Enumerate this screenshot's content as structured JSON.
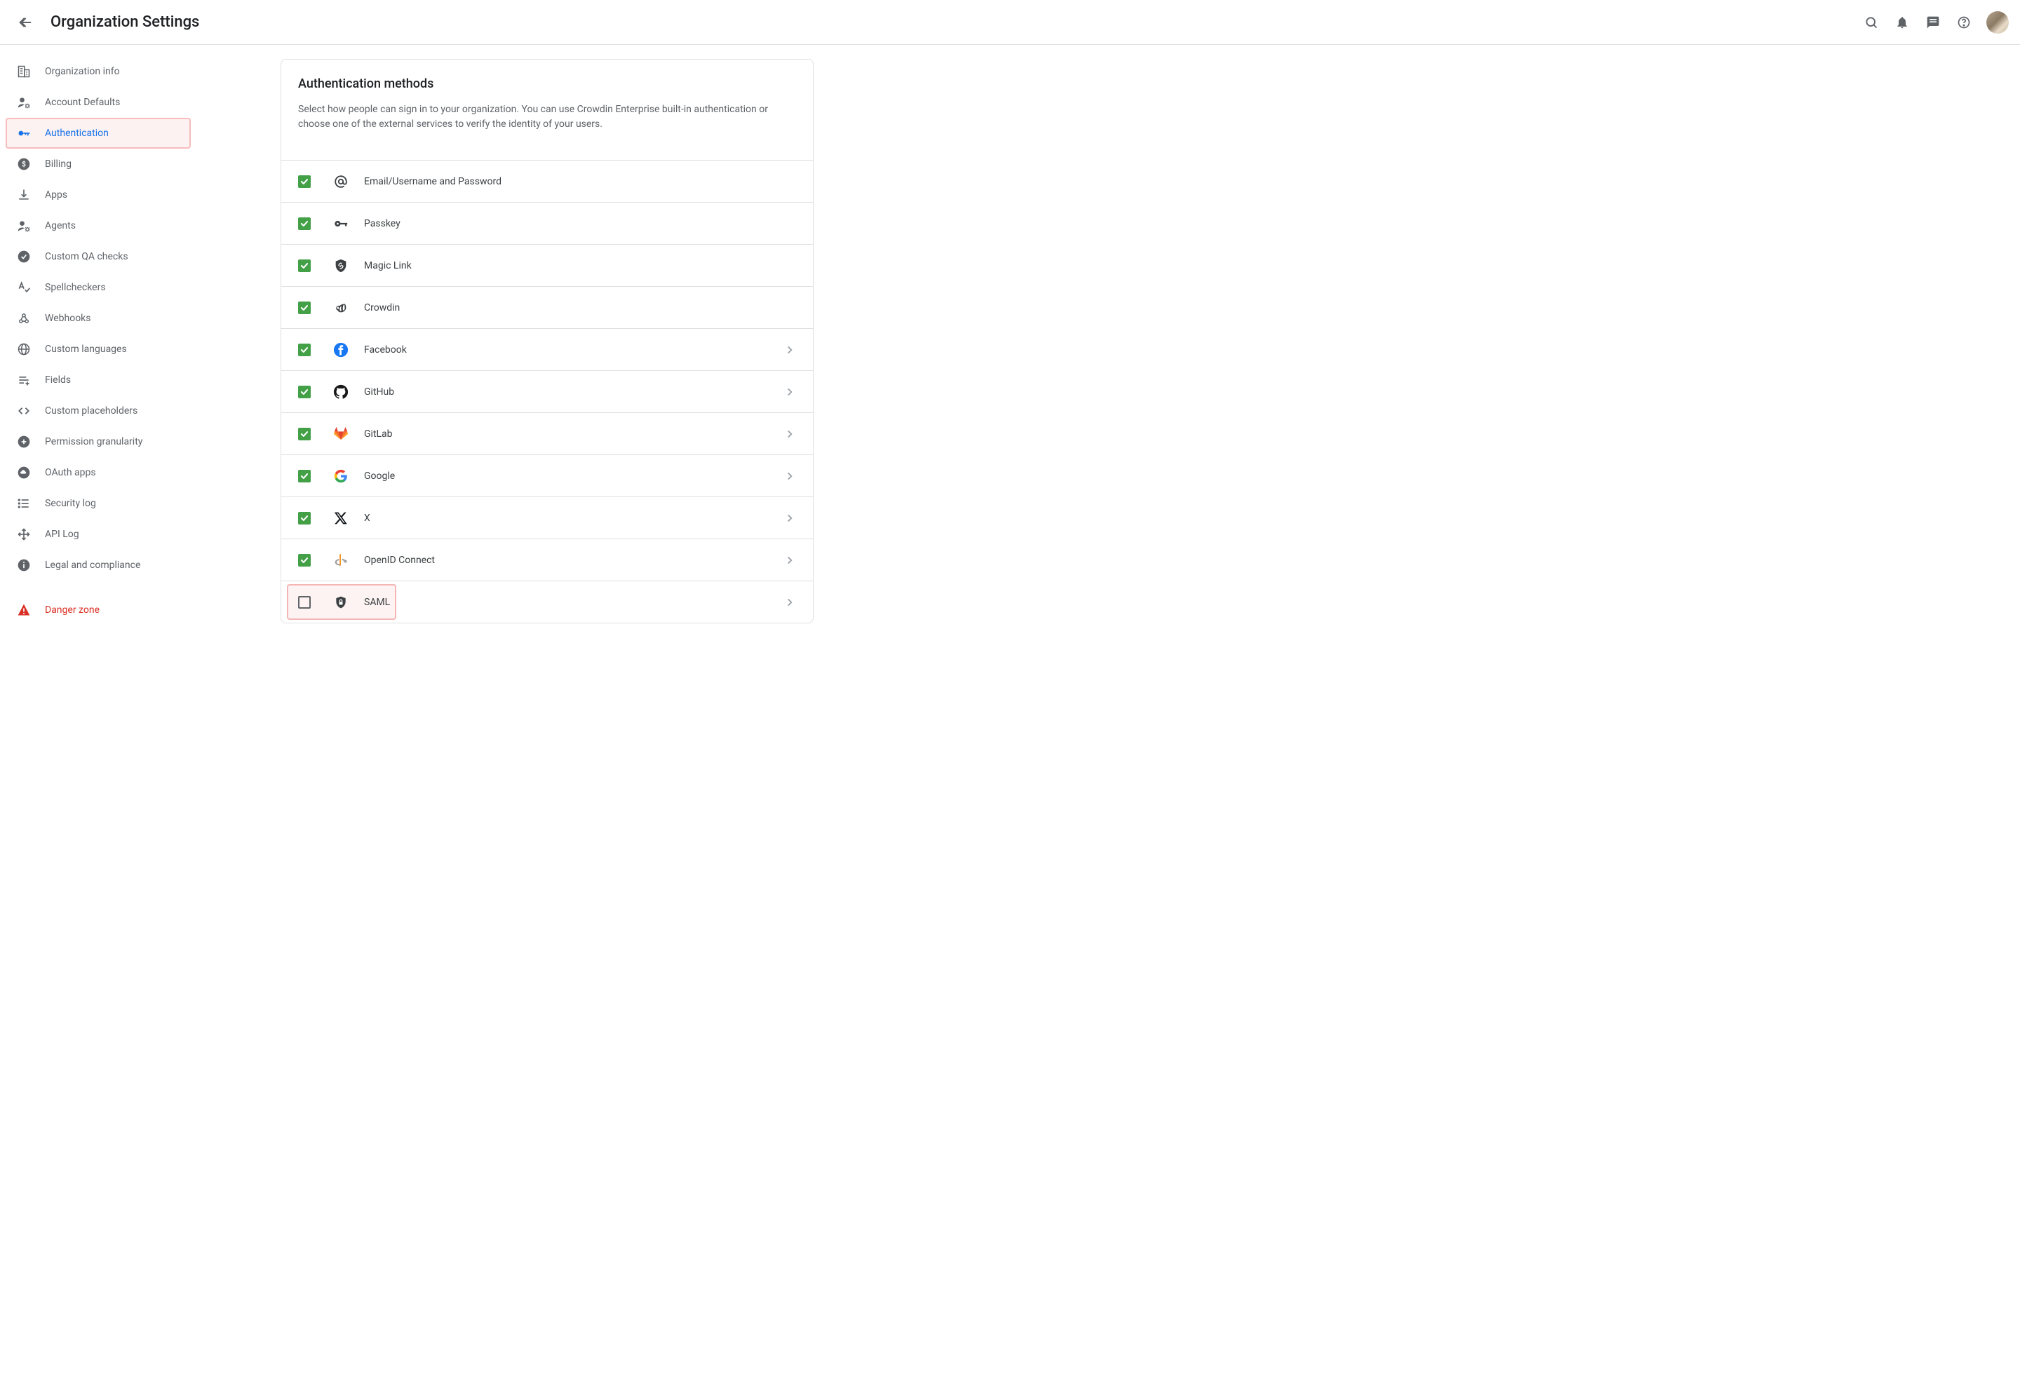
{
  "header": {
    "title": "Organization Settings"
  },
  "colors": {
    "accent": "#1a73e8",
    "check_green": "#43a047",
    "danger": "#d93025",
    "border": "#e0e0e0",
    "text_muted": "#5f6368",
    "highlight_border": "#f5b5b5",
    "highlight_bg": "#fdf3f3"
  },
  "sidebar": {
    "items": [
      {
        "icon": "building",
        "label": "Organization info"
      },
      {
        "icon": "user-gear",
        "label": "Account Defaults"
      },
      {
        "icon": "key",
        "label": "Authentication",
        "active": true,
        "highlight": true
      },
      {
        "icon": "dollar-circle",
        "label": "Billing"
      },
      {
        "icon": "download",
        "label": "Apps"
      },
      {
        "icon": "user-gear",
        "label": "Agents"
      },
      {
        "icon": "check-circle",
        "label": "Custom QA checks"
      },
      {
        "icon": "spellcheck",
        "label": "Spellcheckers"
      },
      {
        "icon": "webhook",
        "label": "Webhooks"
      },
      {
        "icon": "globe",
        "label": "Custom languages"
      },
      {
        "icon": "fields",
        "label": "Fields"
      },
      {
        "icon": "code",
        "label": "Custom placeholders"
      },
      {
        "icon": "plus-circle",
        "label": "Permission granularity"
      },
      {
        "icon": "cloud-circle",
        "label": "OAuth apps"
      },
      {
        "icon": "list",
        "label": "Security log"
      },
      {
        "icon": "move",
        "label": "API Log"
      },
      {
        "icon": "info-circle",
        "label": "Legal and compliance"
      }
    ],
    "danger": {
      "icon": "warning",
      "label": "Danger zone"
    }
  },
  "panel": {
    "title": "Authentication methods",
    "description": "Select how people can sign in to your organization. You can use Crowdin Enterprise built-in authentication or choose one of the external services to verify the identity of your users.",
    "methods": [
      {
        "checked": true,
        "icon": "at",
        "label": "Email/Username and Password",
        "chevron": false
      },
      {
        "checked": true,
        "icon": "key-solid",
        "label": "Passkey",
        "chevron": false
      },
      {
        "checked": true,
        "icon": "shield-link",
        "label": "Magic Link",
        "chevron": false
      },
      {
        "checked": true,
        "icon": "crowdin",
        "label": "Crowdin",
        "chevron": false
      },
      {
        "checked": true,
        "icon": "facebook",
        "label": "Facebook",
        "chevron": true
      },
      {
        "checked": true,
        "icon": "github",
        "label": "GitHub",
        "chevron": true
      },
      {
        "checked": true,
        "icon": "gitlab",
        "label": "GitLab",
        "chevron": true
      },
      {
        "checked": true,
        "icon": "google",
        "label": "Google",
        "chevron": true
      },
      {
        "checked": true,
        "icon": "x",
        "label": "X",
        "chevron": true
      },
      {
        "checked": true,
        "icon": "openid",
        "label": "OpenID Connect",
        "chevron": true
      },
      {
        "checked": false,
        "icon": "shield-lock",
        "label": "SAML",
        "chevron": true,
        "highlight": true
      }
    ]
  }
}
